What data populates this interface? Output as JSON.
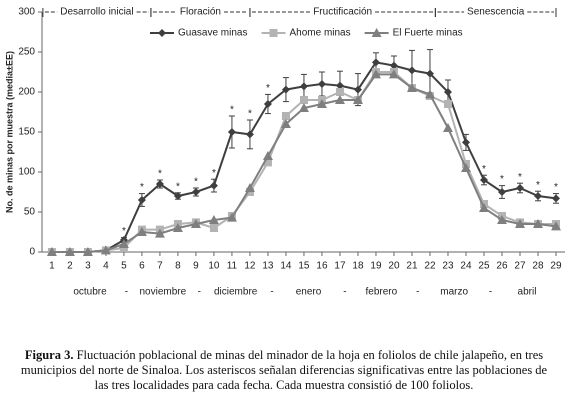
{
  "chart_data": {
    "type": "line",
    "y_label": "No. de minas por muestra (media±EE)",
    "x": [
      1,
      2,
      3,
      4,
      5,
      6,
      7,
      8,
      9,
      10,
      11,
      12,
      13,
      14,
      15,
      16,
      17,
      18,
      19,
      20,
      21,
      22,
      23,
      24,
      25,
      26,
      27,
      28,
      29
    ],
    "xlim": [
      0.45,
      29.5
    ],
    "ylim": [
      0,
      300
    ],
    "yticks": [
      0,
      50,
      100,
      150,
      200,
      250,
      300
    ],
    "grid": false,
    "legend": "top",
    "series": [
      {
        "name": "Guasave minas",
        "color": "#3f3f3f",
        "marker": "diamond",
        "values": [
          0,
          0,
          0,
          2,
          15,
          65,
          85,
          70,
          75,
          83,
          150,
          147,
          185,
          203,
          207,
          210,
          208,
          203,
          237,
          233,
          227,
          223,
          200,
          137,
          90,
          75,
          80,
          70,
          67
        ],
        "errors": [
          0,
          0,
          0,
          2,
          3,
          8,
          5,
          4,
          5,
          8,
          20,
          18,
          12,
          15,
          15,
          15,
          18,
          20,
          12,
          12,
          25,
          30,
          15,
          10,
          6,
          8,
          6,
          6,
          6
        ]
      },
      {
        "name": "Ahome minas",
        "color": "#b3b3b3",
        "marker": "square",
        "values": [
          0,
          0,
          0,
          2,
          5,
          28,
          28,
          35,
          37,
          30,
          45,
          75,
          112,
          170,
          190,
          190,
          200,
          190,
          225,
          225,
          205,
          195,
          185,
          110,
          60,
          45,
          37,
          35,
          35
        ]
      },
      {
        "name": "El Fuerte minas",
        "color": "#7f7f7f",
        "marker": "triangle",
        "values": [
          0,
          0,
          0,
          2,
          10,
          25,
          23,
          30,
          35,
          40,
          43,
          80,
          120,
          160,
          180,
          185,
          190,
          190,
          222,
          222,
          205,
          197,
          155,
          105,
          55,
          40,
          35,
          35,
          32
        ]
      }
    ],
    "significance_marker": "*",
    "significant_x": [
      5,
      6,
      7,
      8,
      9,
      10,
      11,
      12,
      13,
      25,
      26,
      27,
      28,
      29
    ],
    "phases": [
      {
        "label": "Desarrollo inicial",
        "start": 0.5,
        "end": 6.5
      },
      {
        "label": "Floración",
        "start": 6.5,
        "end": 12
      },
      {
        "label": "Fructificación",
        "start": 12,
        "end": 22.3
      },
      {
        "label": "Senescencia",
        "start": 22.3,
        "end": 29
      }
    ],
    "months": [
      "octubre",
      "-",
      "noviembre",
      "-",
      "diciembre",
      "-",
      "enero",
      "-",
      "febrero",
      "-",
      "marzo",
      "-",
      "abril"
    ],
    "caption_label": "Figura 3.",
    "caption": "Fluctuación poblacional de minas del minador de la hoja en foliolos de chile jalapeño, en tres municipios del norte de Sinaloa. Los asteriscos señalan diferencias significativas entre las poblaciones de las tres localidades para cada fecha. Cada muestra consistió de 100 foliolos."
  }
}
